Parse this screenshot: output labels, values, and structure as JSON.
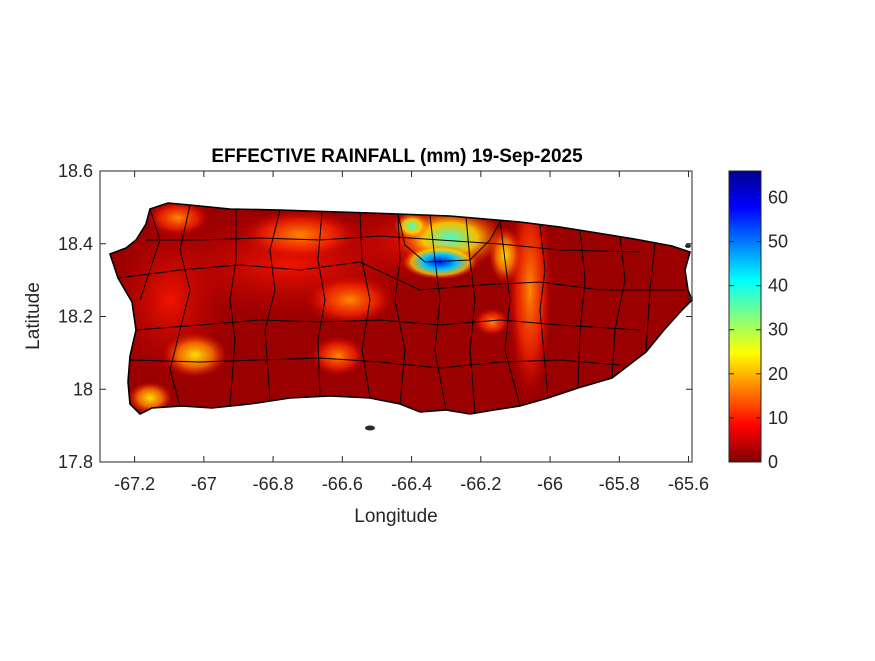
{
  "chart_data": {
    "type": "heatmap",
    "title": "EFFECTIVE RAINFALL (mm) 19-Sep-2025",
    "xlabel": "Longitude",
    "ylabel": "Latitude",
    "xlim": [
      -67.3,
      -65.59
    ],
    "ylim": [
      17.8,
      18.6
    ],
    "xticks": [
      "-67.2",
      "-67",
      "-66.8",
      "-66.6",
      "-66.4",
      "-66.2",
      "-66",
      "-65.8",
      "-65.6"
    ],
    "yticks": [
      "18.6",
      "18.4",
      "18.2",
      "18",
      "17.8"
    ],
    "colorbar": {
      "ticks": [
        "0",
        "10",
        "20",
        "30",
        "40",
        "50",
        "60"
      ],
      "min": 0,
      "max": 66,
      "colormap": "jet"
    },
    "hotspots": [
      {
        "lon": -66.36,
        "lat": 18.35,
        "value": 55
      },
      {
        "lon": -66.31,
        "lat": 18.35,
        "value": 62
      },
      {
        "lon": -66.26,
        "lat": 18.35,
        "value": 55
      },
      {
        "lon": -66.39,
        "lat": 18.46,
        "value": 35
      },
      {
        "lon": -66.28,
        "lat": 18.44,
        "value": 28
      },
      {
        "lon": -66.14,
        "lat": 18.36,
        "value": 20
      },
      {
        "lon": -67.06,
        "lat": 18.08,
        "value": 25
      },
      {
        "lon": -67.17,
        "lat": 17.96,
        "value": 18
      },
      {
        "lon": -67.07,
        "lat": 18.49,
        "value": 15
      },
      {
        "lon": -66.59,
        "lat": 18.09,
        "value": 12
      },
      {
        "lon": -66.17,
        "lat": 18.18,
        "value": 14
      }
    ]
  }
}
